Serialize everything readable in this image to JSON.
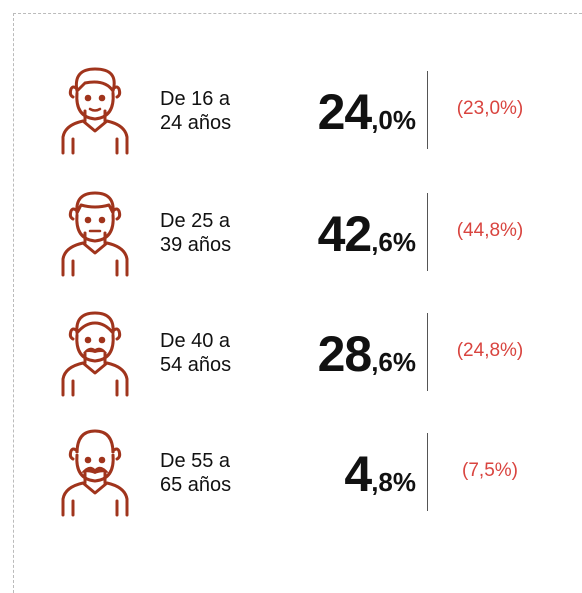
{
  "rows": [
    {
      "label": [
        "De 16 a",
        "24 años"
      ],
      "share": {
        "whole": "24",
        "fraction": ",0%"
      },
      "previous": "(23,0%)"
    },
    {
      "label": [
        "De 25 a",
        "39 años"
      ],
      "share": {
        "whole": "42",
        "fraction": ",6%"
      },
      "previous": "(44,8%)"
    },
    {
      "label": [
        "De 40 a",
        "54 años"
      ],
      "share": {
        "whole": "28",
        "fraction": ",6%"
      },
      "previous": "(24,8%)"
    },
    {
      "label": [
        "De 55 a",
        "65 años"
      ],
      "share": {
        "whole": "4",
        "fraction": ",8%"
      },
      "previous": "(7,5%)"
    }
  ]
}
